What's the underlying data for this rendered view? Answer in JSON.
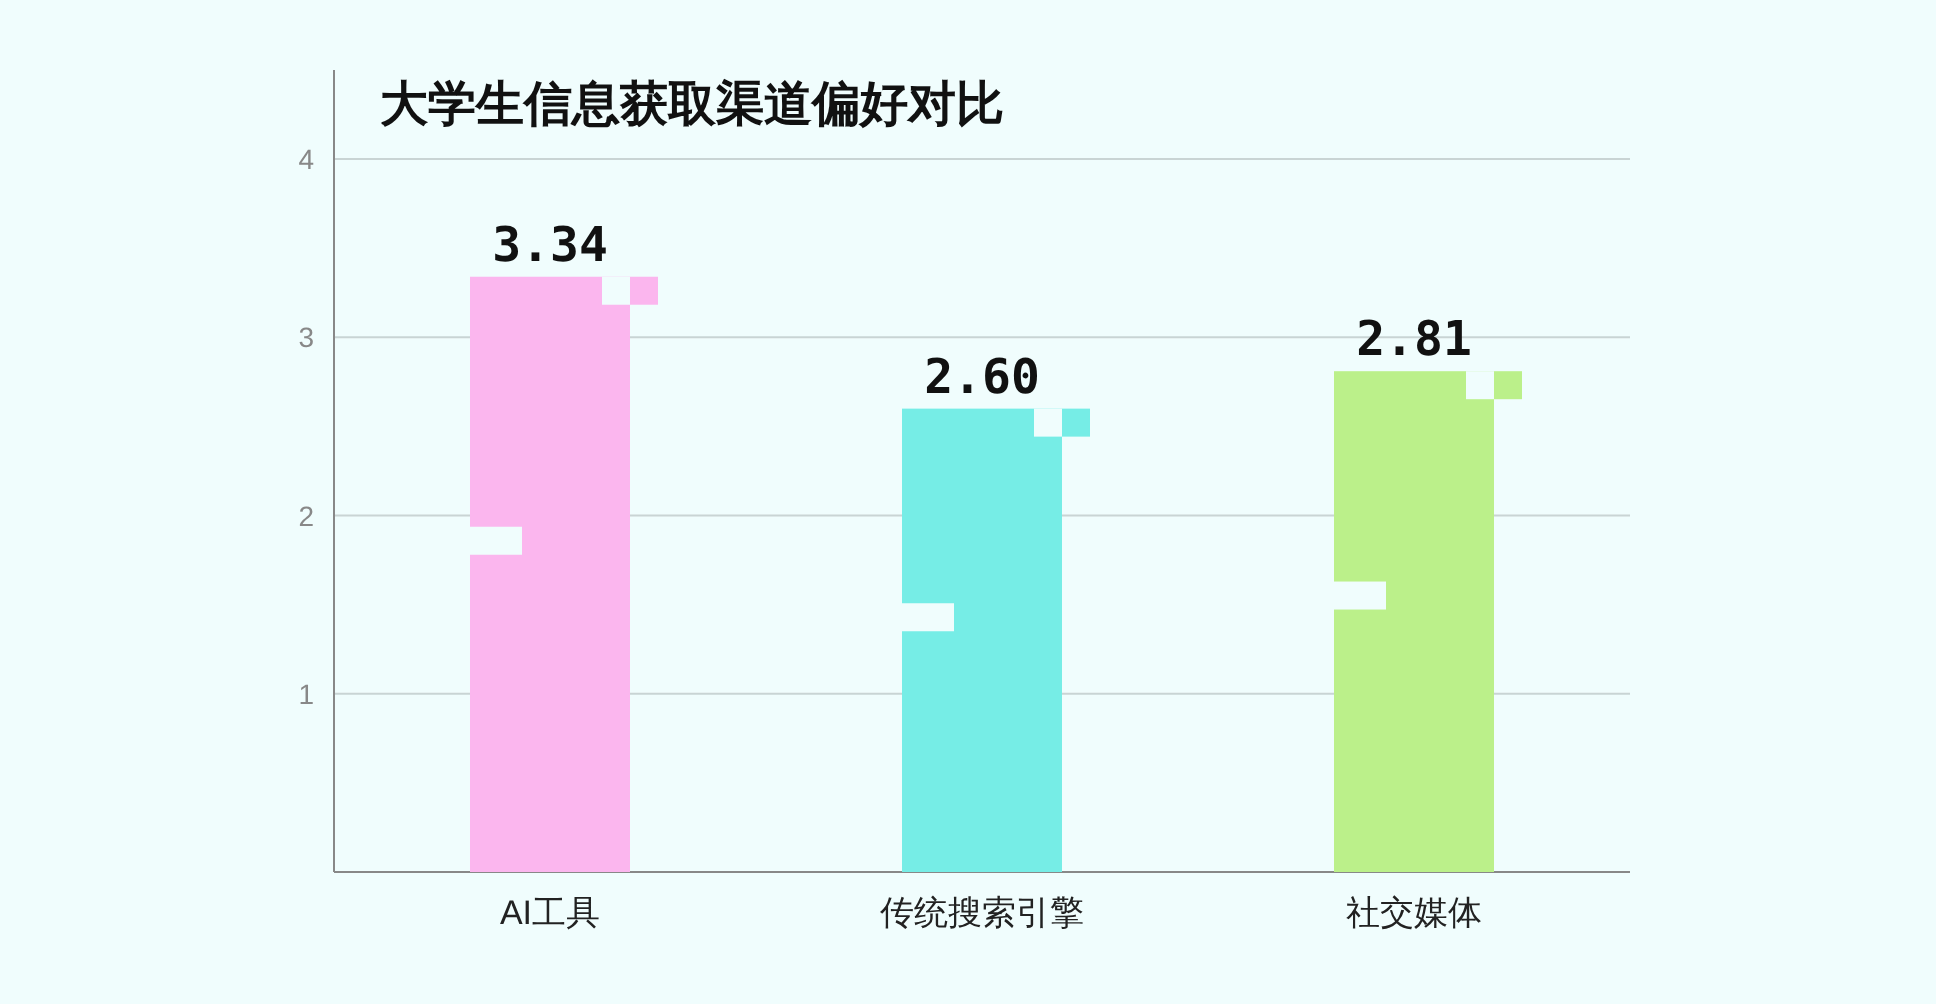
{
  "chart_data": {
    "type": "bar",
    "title": "大学生信息获取渠道偏好对比",
    "categories": [
      "AI工具",
      "传统搜索引擎",
      "社交媒体"
    ],
    "values": [
      3.34,
      2.6,
      2.81
    ],
    "colors": [
      "#fbb6ee",
      "#76ede6",
      "#bbf08a"
    ],
    "value_labels": [
      "3.34",
      "2.60",
      "2.81"
    ],
    "ylim": [
      0,
      4.5
    ],
    "yticks": [
      1,
      2,
      3,
      4
    ],
    "grid": "y"
  }
}
